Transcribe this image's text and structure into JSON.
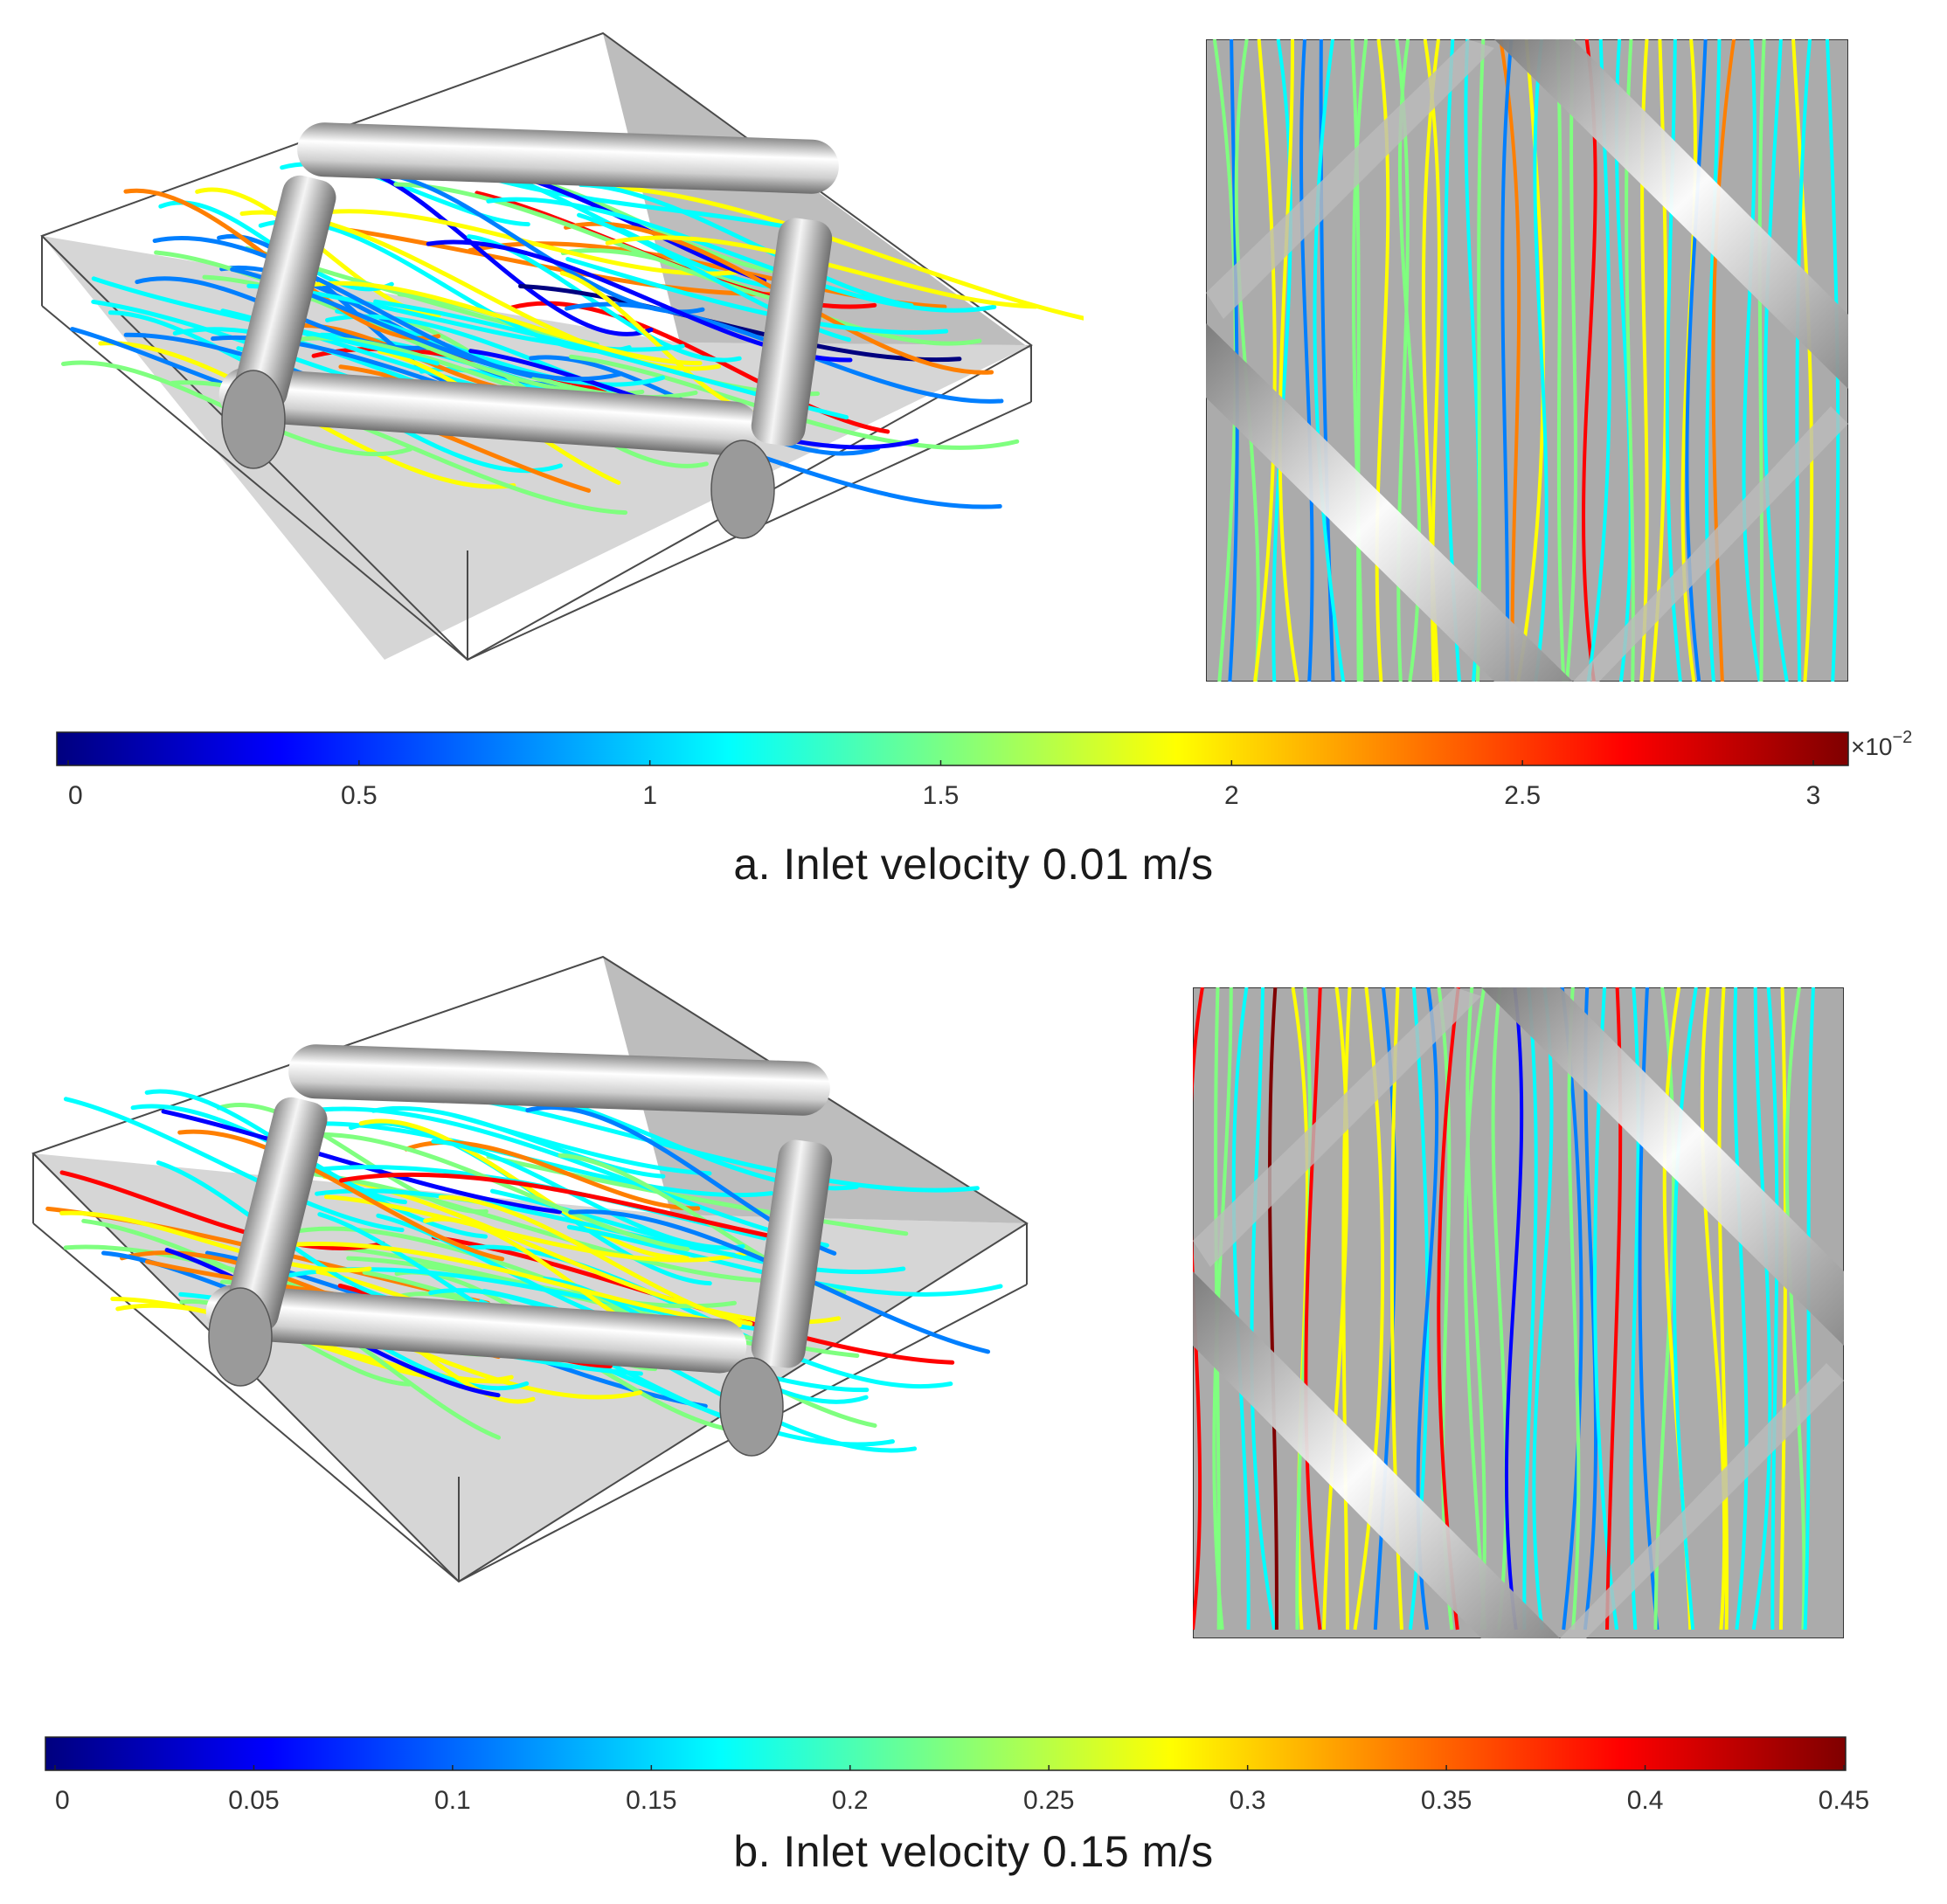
{
  "figure": {
    "panels": [
      {
        "id": "a",
        "caption": "a. Inlet velocity 0.01 m/s",
        "colorbar": {
          "ticks": [
            "0",
            "0.5",
            "1",
            "1.5",
            "2",
            "2.5",
            "3"
          ],
          "tick_values": [
            0,
            0.5,
            1,
            1.5,
            2,
            2.5,
            3
          ],
          "range": [
            0,
            3
          ],
          "multiplier": "×10",
          "multiplier_exp": "−2"
        }
      },
      {
        "id": "b",
        "caption": "b. Inlet velocity 0.15 m/s",
        "colorbar": {
          "ticks": [
            "0",
            "0.05",
            "0.1",
            "0.15",
            "0.2",
            "0.25",
            "0.3",
            "0.35",
            "0.4",
            "0.45"
          ],
          "tick_values": [
            0,
            0.05,
            0.1,
            0.15,
            0.2,
            0.25,
            0.3,
            0.35,
            0.4,
            0.45
          ],
          "range": [
            0,
            0.45
          ]
        }
      }
    ],
    "colormap": [
      "#00007f",
      "#0000ff",
      "#007fff",
      "#00ffff",
      "#7fff7f",
      "#ffff00",
      "#ff7f00",
      "#ff0000",
      "#7f0000"
    ],
    "colors": {
      "box_floor": "#d4d4d4",
      "box_wall": "#bdbdbd",
      "box_edge": "#4a4a4a",
      "cylinder_light": "#ffffff",
      "cylinder_dark": "#7a7a7a",
      "topview_bg": "#ababab"
    }
  }
}
